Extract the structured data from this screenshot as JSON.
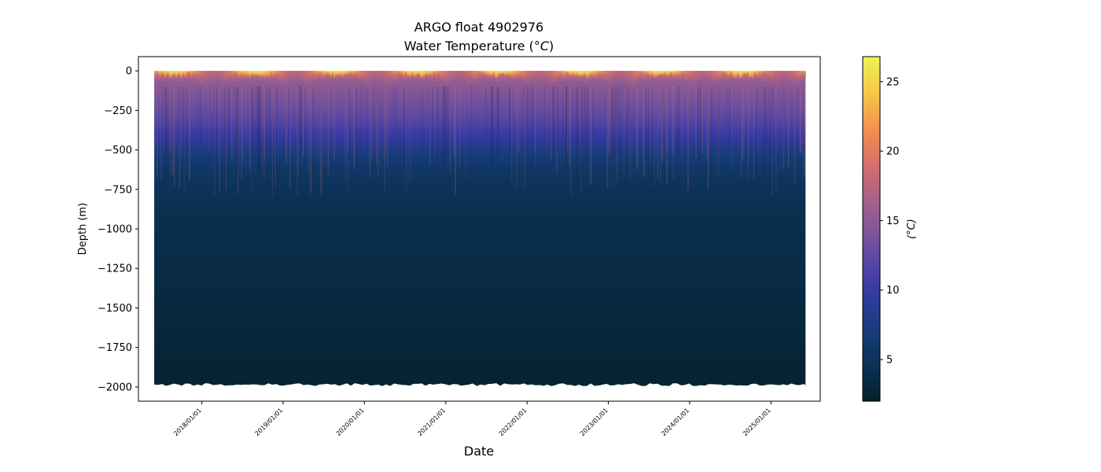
{
  "chart_data": {
    "type": "heatmap",
    "title": "ARGO float 4902976",
    "subtitle_prefix": "Water Temperature (",
    "subtitle_unit": "°C",
    "subtitle_suffix": ")",
    "xlabel": "Date",
    "ylabel": "Depth (m)",
    "colorbar_label": "(°C)",
    "colormap": "thermal",
    "colormap_stops": [
      "#04202b",
      "#0c3257",
      "#1a3d80",
      "#3a3aa8",
      "#6a4fa0",
      "#9a5e8e",
      "#cc6a72",
      "#f38a4f",
      "#f8c449",
      "#e9f551"
    ],
    "x_range": [
      "2017-03-22",
      "2025-08-10"
    ],
    "data_range": [
      "2017-06-01",
      "2025-06-05"
    ],
    "ylim": [
      -2090,
      90
    ],
    "xticks": [
      "2018/01/01",
      "2019/01/01",
      "2020/01/01",
      "2021/01/01",
      "2022/01/01",
      "2023/01/01",
      "2024/01/01",
      "2025/01/01"
    ],
    "yticks": [
      0,
      -250,
      -500,
      -750,
      -1000,
      -1250,
      -1500,
      -1750,
      -2000
    ],
    "clim": [
      2,
      26.8
    ],
    "colorbar_ticks": [
      5,
      10,
      15,
      20,
      25
    ],
    "max_depth": -2000,
    "temperature_profile": [
      {
        "depth": 0,
        "temp": 19.5
      },
      {
        "depth": -20,
        "temp": 18.5
      },
      {
        "depth": -60,
        "temp": 15.5
      },
      {
        "depth": -150,
        "temp": 14.0
      },
      {
        "depth": -250,
        "temp": 12.8
      },
      {
        "depth": -350,
        "temp": 11.3
      },
      {
        "depth": -450,
        "temp": 9.0
      },
      {
        "depth": -550,
        "temp": 6.8
      },
      {
        "depth": -650,
        "temp": 5.5
      },
      {
        "depth": -800,
        "temp": 4.6
      },
      {
        "depth": -1000,
        "temp": 4.0
      },
      {
        "depth": -1250,
        "temp": 3.6
      },
      {
        "depth": -1500,
        "temp": 3.2
      },
      {
        "depth": -1750,
        "temp": 2.8
      },
      {
        "depth": -2000,
        "temp": 2.4
      }
    ],
    "surface_seasonal_range": [
      18,
      26.5
    ],
    "grid": false
  }
}
